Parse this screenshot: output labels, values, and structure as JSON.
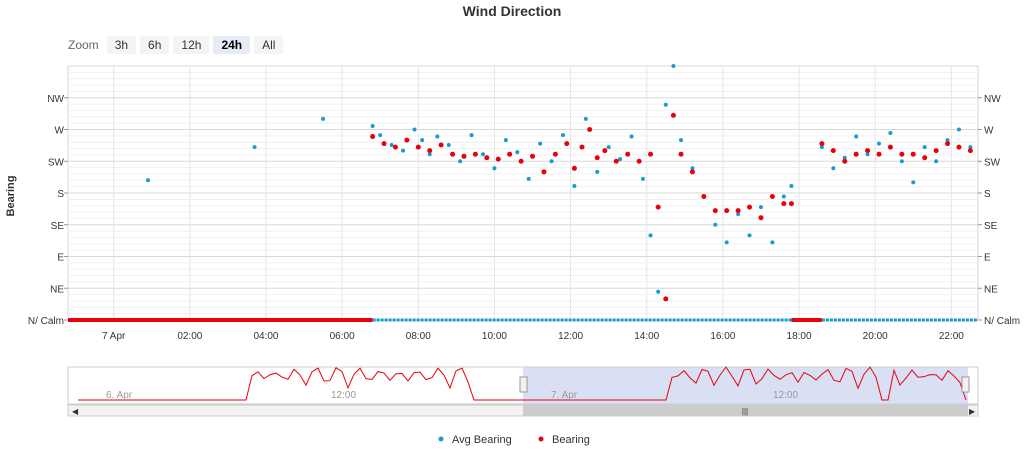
{
  "chart_data": {
    "type": "scatter",
    "title": "Wind Direction",
    "ylabel": "Bearing",
    "xlabel": "",
    "ylim": [
      0,
      360
    ],
    "y_tick_labels": [
      "N/ Calm",
      "NE",
      "E",
      "SE",
      "S",
      "SW",
      "W",
      "NW"
    ],
    "x_tick_labels": [
      "7 Apr",
      "02:00",
      "04:00",
      "06:00",
      "08:00",
      "10:00",
      "12:00",
      "14:00",
      "16:00",
      "18:00",
      "20:00",
      "22:00"
    ],
    "x_unit": "hour of 7 Apr",
    "xlim": [
      -1.2,
      22.7
    ],
    "legend_position": "bottom-center",
    "series": [
      {
        "name": "Avg Bearing",
        "color": "#1a9bd0",
        "points": [
          [
            0.9,
            198
          ],
          [
            3.7,
            245
          ],
          [
            5.5,
            285
          ],
          [
            6.8,
            275
          ],
          [
            7.0,
            262
          ],
          [
            7.3,
            248
          ],
          [
            7.6,
            240
          ],
          [
            7.9,
            270
          ],
          [
            8.1,
            255
          ],
          [
            8.3,
            235
          ],
          [
            8.5,
            260
          ],
          [
            8.8,
            248
          ],
          [
            9.1,
            225
          ],
          [
            9.4,
            262
          ],
          [
            9.7,
            235
          ],
          [
            10.0,
            215
          ],
          [
            10.3,
            255
          ],
          [
            10.6,
            238
          ],
          [
            10.9,
            200
          ],
          [
            11.2,
            250
          ],
          [
            11.5,
            225
          ],
          [
            11.8,
            262
          ],
          [
            12.1,
            190
          ],
          [
            12.4,
            285
          ],
          [
            12.7,
            210
          ],
          [
            13.0,
            245
          ],
          [
            13.3,
            228
          ],
          [
            13.6,
            260
          ],
          [
            13.9,
            200
          ],
          [
            14.1,
            120
          ],
          [
            14.3,
            40
          ],
          [
            14.5,
            305
          ],
          [
            14.7,
            360
          ],
          [
            14.9,
            255
          ],
          [
            15.2,
            215
          ],
          [
            15.5,
            175
          ],
          [
            15.8,
            135
          ],
          [
            16.1,
            110
          ],
          [
            16.4,
            150
          ],
          [
            16.7,
            120
          ],
          [
            17.0,
            160
          ],
          [
            17.3,
            110
          ],
          [
            17.6,
            175
          ],
          [
            17.8,
            190
          ],
          [
            18.6,
            245
          ],
          [
            18.9,
            215
          ],
          [
            19.2,
            230
          ],
          [
            19.5,
            260
          ],
          [
            19.8,
            235
          ],
          [
            20.1,
            250
          ],
          [
            20.4,
            265
          ],
          [
            20.7,
            225
          ],
          [
            21.0,
            195
          ],
          [
            21.3,
            245
          ],
          [
            21.6,
            225
          ],
          [
            21.9,
            255
          ],
          [
            22.2,
            270
          ],
          [
            22.5,
            245
          ]
        ]
      },
      {
        "name": "Bearing",
        "color": "#e8000b",
        "points": [
          [
            6.8,
            260
          ],
          [
            7.1,
            250
          ],
          [
            7.4,
            245
          ],
          [
            7.7,
            255
          ],
          [
            8.0,
            245
          ],
          [
            8.3,
            240
          ],
          [
            8.6,
            248
          ],
          [
            8.9,
            235
          ],
          [
            9.2,
            232
          ],
          [
            9.5,
            235
          ],
          [
            9.8,
            230
          ],
          [
            10.1,
            228
          ],
          [
            10.4,
            235
          ],
          [
            10.7,
            225
          ],
          [
            11.0,
            232
          ],
          [
            11.3,
            210
          ],
          [
            11.6,
            235
          ],
          [
            11.9,
            250
          ],
          [
            12.1,
            215
          ],
          [
            12.3,
            245
          ],
          [
            12.5,
            270
          ],
          [
            12.7,
            230
          ],
          [
            12.9,
            240
          ],
          [
            13.2,
            225
          ],
          [
            13.5,
            235
          ],
          [
            13.8,
            225
          ],
          [
            14.1,
            235
          ],
          [
            14.3,
            160
          ],
          [
            14.5,
            30
          ],
          [
            14.7,
            290
          ],
          [
            14.9,
            235
          ],
          [
            15.2,
            210
          ],
          [
            15.5,
            175
          ],
          [
            15.8,
            155
          ],
          [
            16.1,
            155
          ],
          [
            16.4,
            155
          ],
          [
            16.7,
            160
          ],
          [
            17.0,
            145
          ],
          [
            17.3,
            175
          ],
          [
            17.6,
            165
          ],
          [
            17.8,
            165
          ],
          [
            18.6,
            250
          ],
          [
            18.9,
            240
          ],
          [
            19.2,
            225
          ],
          [
            19.5,
            235
          ],
          [
            19.8,
            240
          ],
          [
            20.1,
            235
          ],
          [
            20.4,
            245
          ],
          [
            20.7,
            235
          ],
          [
            21.0,
            235
          ],
          [
            21.3,
            230
          ],
          [
            21.6,
            240
          ],
          [
            21.9,
            250
          ],
          [
            22.2,
            245
          ],
          [
            22.5,
            240
          ]
        ]
      }
    ]
  },
  "zoom": {
    "label": "Zoom",
    "buttons": [
      "3h",
      "6h",
      "12h",
      "24h",
      "All"
    ],
    "selected": "24h"
  },
  "navigator": {
    "labels": [
      "6. Apr",
      "12:00",
      "7. Apr",
      "12:00"
    ],
    "scrollbar_grip": "|||"
  },
  "colors": {
    "avg_bearing": "#1a9bd0",
    "bearing": "#e8000b",
    "navigator_mask": "#c9d3ee",
    "navigator_line": "#e8000b"
  }
}
